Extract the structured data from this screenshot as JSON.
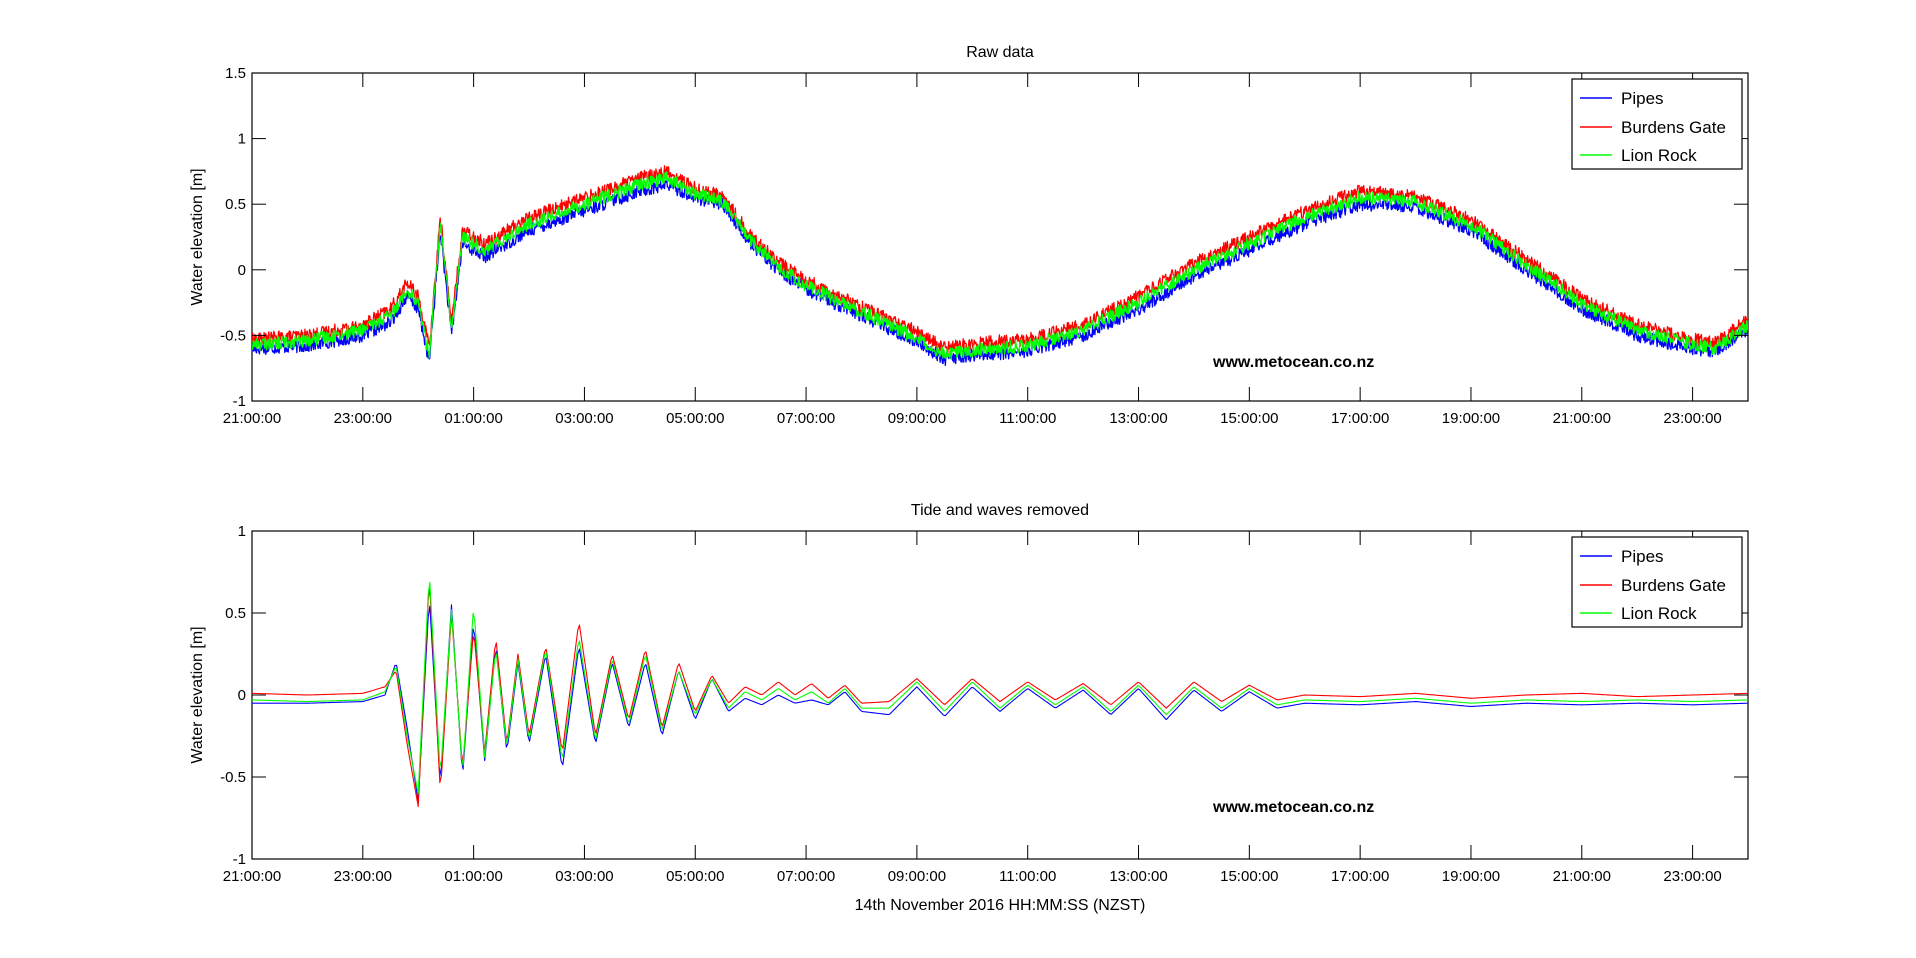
{
  "chart_data": [
    {
      "type": "line",
      "title": "Raw data",
      "ylabel": "Water elevation [m]",
      "xlabel": "",
      "ylim": [
        -1,
        1.5
      ],
      "yticks": [
        -1,
        -0.5,
        0,
        0.5,
        1,
        1.5
      ],
      "ytick_labels": [
        "-1",
        "-0.5",
        "0",
        "0.5",
        "1",
        "1.5"
      ],
      "x_unit": "hours since 14th November 2016 21:00:00 (NZST)",
      "xlim": [
        0,
        27
      ],
      "xtick_positions": [
        0,
        2,
        4,
        6,
        8,
        10,
        12,
        14,
        16,
        18,
        20,
        22,
        24,
        26
      ],
      "xtick_labels": [
        "21:00:00",
        "23:00:00",
        "01:00:00",
        "03:00:00",
        "05:00:00",
        "07:00:00",
        "09:00:00",
        "11:00:00",
        "13:00:00",
        "15:00:00",
        "17:00:00",
        "19:00:00",
        "21:00:00",
        "23:00:00"
      ],
      "watermark": "www.metocean.co.nz",
      "legend_position": "top-right",
      "series": [
        {
          "name": "Pipes",
          "color": "#0000ff",
          "noise": 0.05,
          "x": [
            0,
            1,
            2,
            2.5,
            2.8,
            3.0,
            3.2,
            3.4,
            3.6,
            3.8,
            4.2,
            5,
            6,
            7,
            7.5,
            8,
            8.5,
            9,
            9.5,
            10,
            11,
            12,
            12.5,
            13,
            14,
            15,
            16,
            17,
            18,
            19,
            20,
            21,
            22,
            23,
            24,
            25,
            26,
            26.4,
            27
          ],
          "y": [
            -0.6,
            -0.58,
            -0.5,
            -0.4,
            -0.2,
            -0.3,
            -0.7,
            0.3,
            -0.5,
            0.2,
            0.1,
            0.3,
            0.45,
            0.6,
            0.65,
            0.55,
            0.5,
            0.2,
            0.0,
            -0.15,
            -0.35,
            -0.55,
            -0.68,
            -0.65,
            -0.62,
            -0.5,
            -0.3,
            -0.05,
            0.15,
            0.35,
            0.5,
            0.48,
            0.3,
            0.0,
            -0.3,
            -0.5,
            -0.6,
            -0.62,
            -0.45
          ]
        },
        {
          "name": "Burdens Gate",
          "color": "#ff0000",
          "noise": 0.05,
          "x": [
            0,
            1,
            2,
            2.5,
            2.8,
            3.0,
            3.2,
            3.4,
            3.6,
            3.8,
            4.2,
            5,
            6,
            7,
            7.5,
            8,
            8.5,
            9,
            9.5,
            10,
            11,
            12,
            12.5,
            13,
            14,
            15,
            16,
            17,
            18,
            19,
            20,
            21,
            22,
            23,
            24,
            25,
            26,
            26.4,
            27
          ],
          "y": [
            -0.53,
            -0.5,
            -0.42,
            -0.3,
            -0.1,
            -0.2,
            -0.6,
            0.4,
            -0.4,
            0.3,
            0.2,
            0.4,
            0.55,
            0.7,
            0.75,
            0.62,
            0.56,
            0.26,
            0.06,
            -0.08,
            -0.28,
            -0.47,
            -0.6,
            -0.56,
            -0.53,
            -0.42,
            -0.2,
            0.05,
            0.25,
            0.45,
            0.6,
            0.56,
            0.38,
            0.08,
            -0.22,
            -0.42,
            -0.53,
            -0.56,
            -0.38
          ]
        },
        {
          "name": "Lion Rock",
          "color": "#00ff00",
          "noise": 0.05,
          "x": [
            0,
            1,
            2,
            2.5,
            2.8,
            3.0,
            3.2,
            3.4,
            3.6,
            3.8,
            4.2,
            5,
            6,
            7,
            7.5,
            8,
            8.5,
            9,
            9.5,
            10,
            11,
            12,
            12.5,
            13,
            14,
            15,
            16,
            17,
            18,
            19,
            20,
            21,
            22,
            23,
            24,
            25,
            26,
            26.4,
            27
          ],
          "y": [
            -0.57,
            -0.54,
            -0.46,
            -0.35,
            -0.15,
            -0.25,
            -0.65,
            0.35,
            -0.45,
            0.25,
            0.15,
            0.35,
            0.5,
            0.65,
            0.7,
            0.58,
            0.52,
            0.22,
            0.02,
            -0.12,
            -0.32,
            -0.52,
            -0.64,
            -0.61,
            -0.58,
            -0.46,
            -0.25,
            0.0,
            0.2,
            0.4,
            0.55,
            0.52,
            0.34,
            0.04,
            -0.26,
            -0.46,
            -0.57,
            -0.6,
            -0.42
          ]
        }
      ]
    },
    {
      "type": "line",
      "title": "Tide and waves removed",
      "ylabel": "Water elevation [m]",
      "xlabel": "14th November 2016 HH:MM:SS (NZST)",
      "ylim": [
        -1,
        1
      ],
      "yticks": [
        -1,
        -0.5,
        0,
        0.5,
        1
      ],
      "ytick_labels": [
        "-1",
        "-0.5",
        "0",
        "0.5",
        "1"
      ],
      "x_unit": "hours since 14th November 2016 21:00:00 (NZST)",
      "xlim": [
        0,
        27
      ],
      "xtick_positions": [
        0,
        2,
        4,
        6,
        8,
        10,
        12,
        14,
        16,
        18,
        20,
        22,
        24,
        26
      ],
      "xtick_labels": [
        "21:00:00",
        "23:00:00",
        "01:00:00",
        "03:00:00",
        "05:00:00",
        "07:00:00",
        "09:00:00",
        "11:00:00",
        "13:00:00",
        "15:00:00",
        "17:00:00",
        "19:00:00",
        "21:00:00",
        "23:00:00"
      ],
      "watermark": "www.metocean.co.nz",
      "legend_position": "top-right",
      "series": [
        {
          "name": "Pipes",
          "color": "#0000ff",
          "noise": 0,
          "x": [
            0,
            1,
            2,
            2.4,
            2.6,
            2.8,
            3.0,
            3.2,
            3.4,
            3.6,
            3.8,
            4.0,
            4.2,
            4.4,
            4.6,
            4.8,
            5.0,
            5.3,
            5.6,
            5.9,
            6.2,
            6.5,
            6.8,
            7.1,
            7.4,
            7.7,
            8.0,
            8.3,
            8.6,
            8.9,
            9.2,
            9.5,
            9.8,
            10.1,
            10.4,
            10.7,
            11.0,
            11.5,
            12.0,
            12.5,
            13.0,
            13.5,
            14.0,
            14.5,
            15.0,
            15.5,
            16.0,
            16.5,
            17.0,
            17.5,
            18.0,
            18.5,
            19.0,
            20.0,
            21.0,
            22.0,
            23.0,
            24.0,
            25.0,
            26.0,
            27.0
          ],
          "y": [
            -0.05,
            -0.05,
            -0.04,
            0.0,
            0.2,
            -0.2,
            -0.65,
            0.6,
            -0.55,
            0.55,
            -0.5,
            0.45,
            -0.4,
            0.3,
            -0.35,
            0.2,
            -0.3,
            0.25,
            -0.45,
            0.3,
            -0.3,
            0.2,
            -0.2,
            0.2,
            -0.25,
            0.15,
            -0.15,
            0.1,
            -0.1,
            -0.02,
            -0.06,
            0.0,
            -0.05,
            -0.03,
            -0.06,
            0.02,
            -0.1,
            -0.12,
            0.05,
            -0.13,
            0.05,
            -0.1,
            0.04,
            -0.08,
            0.03,
            -0.12,
            0.04,
            -0.15,
            0.03,
            -0.1,
            0.02,
            -0.08,
            -0.05,
            -0.06,
            -0.04,
            -0.07,
            -0.05,
            -0.06,
            -0.05,
            -0.06,
            -0.05
          ]
        },
        {
          "name": "Burdens Gate",
          "color": "#ff0000",
          "noise": 0,
          "x": [
            0,
            1,
            2,
            2.4,
            2.6,
            2.8,
            3.0,
            3.2,
            3.4,
            3.6,
            3.8,
            4.0,
            4.2,
            4.4,
            4.6,
            4.8,
            5.0,
            5.3,
            5.6,
            5.9,
            6.2,
            6.5,
            6.8,
            7.1,
            7.4,
            7.7,
            8.0,
            8.3,
            8.6,
            8.9,
            9.2,
            9.5,
            9.8,
            10.1,
            10.4,
            10.7,
            11.0,
            11.5,
            12.0,
            12.5,
            13.0,
            13.5,
            14.0,
            14.5,
            15.0,
            15.5,
            16.0,
            16.5,
            17.0,
            17.5,
            18.0,
            18.5,
            19.0,
            20.0,
            21.0,
            22.0,
            23.0,
            24.0,
            25.0,
            26.0,
            27.0
          ],
          "y": [
            0.01,
            0.0,
            0.01,
            0.05,
            0.15,
            -0.3,
            -0.68,
            0.72,
            -0.6,
            0.5,
            -0.45,
            0.4,
            -0.35,
            0.35,
            -0.3,
            0.25,
            -0.25,
            0.3,
            -0.35,
            0.45,
            -0.25,
            0.25,
            -0.15,
            0.28,
            -0.2,
            0.2,
            -0.1,
            0.12,
            -0.05,
            0.05,
            0.0,
            0.08,
            0.0,
            0.07,
            -0.02,
            0.06,
            -0.05,
            -0.04,
            0.1,
            -0.06,
            0.1,
            -0.04,
            0.08,
            -0.03,
            0.07,
            -0.06,
            0.08,
            -0.08,
            0.08,
            -0.04,
            0.06,
            -0.03,
            0.0,
            -0.01,
            0.01,
            -0.02,
            0.0,
            0.01,
            -0.01,
            0.0,
            0.01
          ]
        },
        {
          "name": "Lion Rock",
          "color": "#00ff00",
          "noise": 0,
          "x": [
            0,
            1,
            2,
            2.4,
            2.6,
            2.8,
            3.0,
            3.2,
            3.4,
            3.6,
            3.8,
            4.0,
            4.2,
            4.4,
            4.6,
            4.8,
            5.0,
            5.3,
            5.6,
            5.9,
            6.2,
            6.5,
            6.8,
            7.1,
            7.4,
            7.7,
            8.0,
            8.3,
            8.6,
            8.9,
            9.2,
            9.5,
            9.8,
            10.1,
            10.4,
            10.7,
            11.0,
            11.5,
            12.0,
            12.5,
            13.0,
            13.5,
            14.0,
            14.5,
            15.0,
            15.5,
            16.0,
            16.5,
            17.0,
            17.5,
            18.0,
            18.5,
            19.0,
            20.0,
            21.0,
            22.0,
            23.0,
            24.0,
            25.0,
            26.0,
            27.0
          ],
          "y": [
            -0.03,
            -0.04,
            -0.03,
            0.02,
            0.18,
            -0.25,
            -0.6,
            0.75,
            -0.5,
            0.52,
            -0.48,
            0.55,
            -0.38,
            0.28,
            -0.32,
            0.22,
            -0.28,
            0.28,
            -0.4,
            0.35,
            -0.28,
            0.22,
            -0.18,
            0.25,
            -0.22,
            0.15,
            -0.12,
            0.1,
            -0.08,
            0.02,
            -0.03,
            0.04,
            -0.03,
            0.02,
            -0.05,
            0.04,
            -0.08,
            -0.08,
            0.08,
            -0.1,
            0.08,
            -0.08,
            0.06,
            -0.06,
            0.05,
            -0.1,
            0.06,
            -0.12,
            0.05,
            -0.08,
            0.04,
            -0.06,
            -0.03,
            -0.04,
            -0.02,
            -0.05,
            -0.03,
            -0.04,
            -0.03,
            -0.04,
            -0.03
          ]
        }
      ]
    }
  ]
}
